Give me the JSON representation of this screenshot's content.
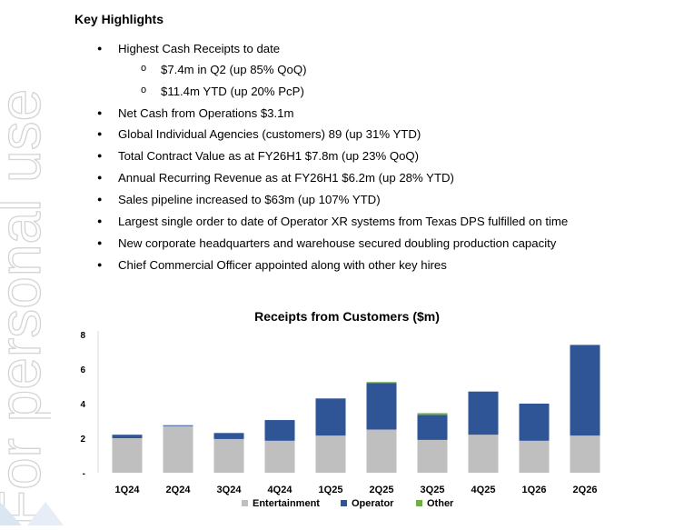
{
  "watermark": {
    "text": "For personal use"
  },
  "highlights": {
    "heading": "Key Highlights",
    "items": [
      {
        "text": "Highest Cash Receipts to date",
        "level": 1
      },
      {
        "text": "$7.4m in Q2 (up 85% QoQ)",
        "level": 2
      },
      {
        "text": "$11.4m YTD (up 20% PcP)",
        "level": 2
      },
      {
        "text": "Net Cash from Operations $3.1m",
        "level": 1
      },
      {
        "text": "Global Individual Agencies (customers) 89 (up 31% YTD)",
        "level": 1
      },
      {
        "text": "Total Contract Value as at FY26H1 $7.8m (up 23% QoQ)",
        "level": 1
      },
      {
        "text": "Annual Recurring Revenue as at FY26H1 $6.2m (up 28% YTD)",
        "level": 1
      },
      {
        "text": "Sales pipeline increased to $63m (up 107% YTD)",
        "level": 1
      },
      {
        "text": "Largest single order to date of Operator XR systems from Texas DPS fulfilled on time",
        "level": 1
      },
      {
        "text": "New corporate headquarters and warehouse secured doubling production capacity",
        "level": 1
      },
      {
        "text": "Chief Commercial Officer appointed along with other key hires",
        "level": 1
      }
    ]
  },
  "chart_data": {
    "type": "bar",
    "stacked": true,
    "title": "Receipts from Customers ($m)",
    "categories": [
      "1Q24",
      "2Q24",
      "3Q24",
      "4Q24",
      "1Q25",
      "2Q25",
      "3Q25",
      "4Q25",
      "1Q26",
      "2Q26"
    ],
    "series": [
      {
        "name": "Entertainment",
        "color": "#bfbfbf",
        "values": [
          2.0,
          2.7,
          1.95,
          1.85,
          2.15,
          2.5,
          1.9,
          2.2,
          1.85,
          2.15
        ]
      },
      {
        "name": "Operator",
        "color": "#2f5597",
        "values": [
          0.2,
          0.05,
          0.35,
          1.2,
          2.15,
          2.7,
          1.45,
          2.5,
          2.15,
          5.25
        ]
      },
      {
        "name": "Other",
        "color": "#70ad47",
        "values": [
          0,
          0,
          0,
          0,
          0,
          0.05,
          0.1,
          0,
          0,
          0
        ]
      }
    ],
    "ylim": [
      0,
      8
    ],
    "yticks": [
      "-",
      "2",
      "4",
      "6",
      "8"
    ],
    "grid": false,
    "legend": "bottom"
  }
}
